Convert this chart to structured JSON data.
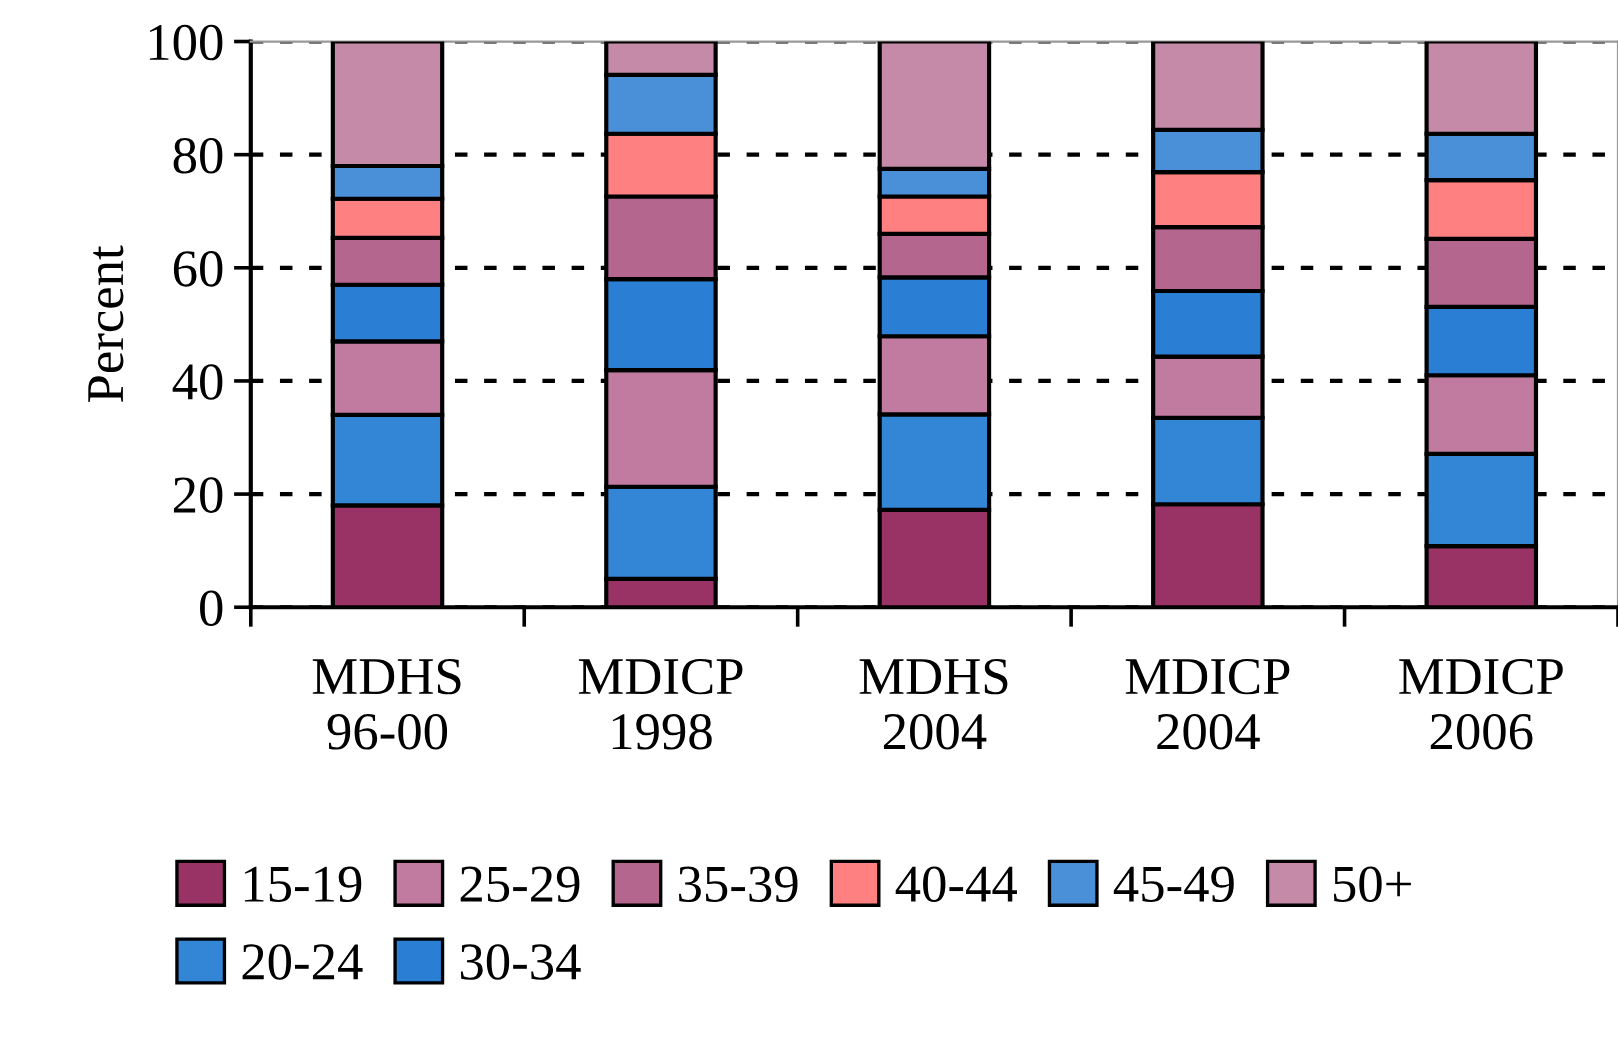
{
  "chart_data": {
    "type": "bar",
    "stacked": true,
    "ylabel": "Percent",
    "categories": [
      "MDHS\n96-00",
      "MDICP\n1998",
      "MDHS\n2004",
      "MDICP\n2004",
      "MDICP\n2006"
    ],
    "series": [
      {
        "name": "15-19",
        "color": "#993366",
        "values": [
          18,
          5,
          17.2,
          18.2,
          10.8
        ]
      },
      {
        "name": "20-24",
        "color": "#3385d6",
        "values": [
          16,
          16.3,
          16.9,
          15.3,
          16.3
        ]
      },
      {
        "name": "25-29",
        "color": "#c27ba0",
        "values": [
          13,
          20.6,
          13.8,
          10.8,
          13.9
        ]
      },
      {
        "name": "30-34",
        "color": "#2a7fd4",
        "values": [
          10,
          16.1,
          10.4,
          11.6,
          12.1
        ]
      },
      {
        "name": "35-39",
        "color": "#b5668f",
        "values": [
          8.3,
          14.6,
          7.7,
          11.3,
          12
        ]
      },
      {
        "name": "40-44",
        "color": "#ff8080",
        "values": [
          6.9,
          11.1,
          6.6,
          9.7,
          10.4
        ]
      },
      {
        "name": "45-49",
        "color": "#4a90d9",
        "values": [
          5.8,
          10.4,
          4.9,
          7.5,
          8.2
        ]
      },
      {
        "name": "50+",
        "color": "#c48aa8",
        "values": [
          22,
          5.9,
          22.5,
          15.6,
          16.3
        ]
      }
    ],
    "ylim": [
      0,
      100
    ],
    "yticks": [
      0,
      20,
      40,
      60,
      80,
      100
    ],
    "grid": "y",
    "legend": "bottom"
  }
}
